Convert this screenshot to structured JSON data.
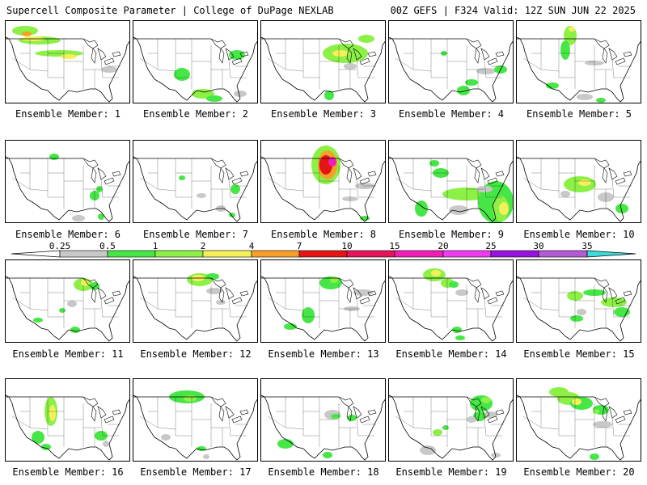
{
  "header": {
    "title_left": "Supercell Composite Parameter | College of DuPage NEXLAB",
    "title_right": "00Z GEFS | F324 Valid: 12Z SUN JUN 22 2025"
  },
  "colors": {
    "bin_0_25_0_5": "#c8c8c8",
    "bin_0_5_1": "#46e646",
    "bin_1_2": "#8cf046",
    "bin_2_4": "#f5f05a",
    "bin_4_7": "#f5a028",
    "bin_7_10": "#e61414",
    "bin_10_15": "#e6145a",
    "bin_15_20": "#f01eb4",
    "bin_20_25": "#f03cf0",
    "bin_25_30": "#9614dc",
    "bin_30_35": "#b45ad2",
    "bin_gt_35": "#3cdcdc"
  },
  "colorbar": {
    "labels": [
      "0.25",
      "0.5",
      "1",
      "2",
      "4",
      "7",
      "10",
      "15",
      "20",
      "25",
      "30",
      "35"
    ]
  },
  "members": [
    {
      "label": "Ensemble Member: 1"
    },
    {
      "label": "Ensemble Member: 2"
    },
    {
      "label": "Ensemble Member: 3"
    },
    {
      "label": "Ensemble Member: 4"
    },
    {
      "label": "Ensemble Member: 5"
    },
    {
      "label": "Ensemble Member: 6"
    },
    {
      "label": "Ensemble Member: 7"
    },
    {
      "label": "Ensemble Member: 8"
    },
    {
      "label": "Ensemble Member: 9"
    },
    {
      "label": "Ensemble Member: 10"
    },
    {
      "label": "Ensemble Member: 11"
    },
    {
      "label": "Ensemble Member: 12"
    },
    {
      "label": "Ensemble Member: 13"
    },
    {
      "label": "Ensemble Member: 14"
    },
    {
      "label": "Ensemble Member: 15"
    },
    {
      "label": "Ensemble Member: 16"
    },
    {
      "label": "Ensemble Member: 17"
    },
    {
      "label": "Ensemble Member: 18"
    },
    {
      "label": "Ensemble Member: 19"
    },
    {
      "label": "Ensemble Member: 20"
    }
  ]
}
